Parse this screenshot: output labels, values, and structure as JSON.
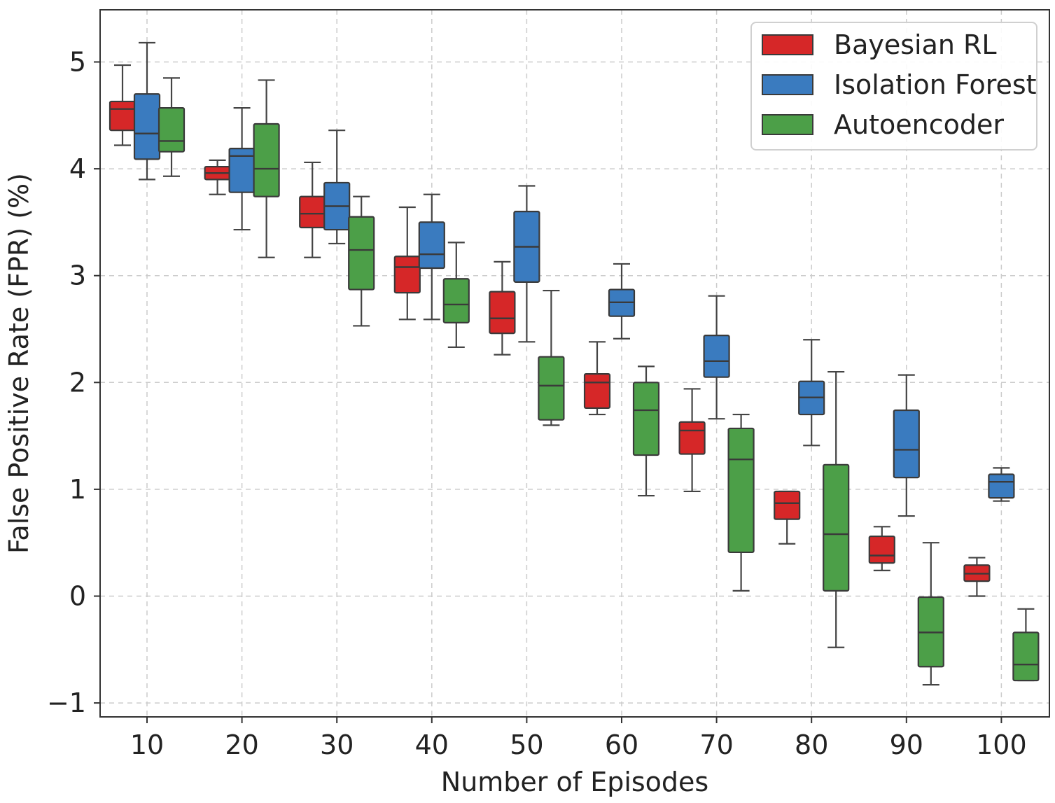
{
  "chart_data": {
    "type": "boxplot",
    "title": "",
    "xlabel": "Number of Episodes",
    "ylabel": "False Positive Rate (FPR) (%)",
    "categories": [
      "10",
      "20",
      "30",
      "40",
      "50",
      "60",
      "70",
      "80",
      "90",
      "100"
    ],
    "ylim": [
      -1.15,
      5.5
    ],
    "yticks": [
      -1,
      0,
      1,
      2,
      3,
      4,
      5
    ],
    "ytick_labels": [
      "−1",
      "0",
      "1",
      "2",
      "3",
      "4",
      "5"
    ],
    "grid": true,
    "legend_position": "top-right",
    "series": [
      {
        "name": "Bayesian RL",
        "color": "#d62728",
        "boxes": [
          {
            "whislo": 4.22,
            "q1": 4.36,
            "med": 4.56,
            "q3": 4.63,
            "whishi": 4.97
          },
          {
            "whislo": 3.76,
            "q1": 3.9,
            "med": 3.96,
            "q3": 4.02,
            "whishi": 4.08
          },
          {
            "whislo": 3.17,
            "q1": 3.45,
            "med": 3.58,
            "q3": 3.74,
            "whishi": 4.06
          },
          {
            "whislo": 2.59,
            "q1": 2.84,
            "med": 3.08,
            "q3": 3.18,
            "whishi": 3.64
          },
          {
            "whislo": 2.26,
            "q1": 2.46,
            "med": 2.6,
            "q3": 2.85,
            "whishi": 3.13
          },
          {
            "whislo": 1.7,
            "q1": 1.76,
            "med": 2.0,
            "q3": 2.08,
            "whishi": 2.38
          },
          {
            "whislo": 0.98,
            "q1": 1.33,
            "med": 1.55,
            "q3": 1.63,
            "whishi": 1.94
          },
          {
            "whislo": 0.49,
            "q1": 0.72,
            "med": 0.87,
            "q3": 0.98,
            "whishi": 0.98
          },
          {
            "whislo": 0.24,
            "q1": 0.31,
            "med": 0.38,
            "q3": 0.56,
            "whishi": 0.65
          },
          {
            "whislo": 0.0,
            "q1": 0.14,
            "med": 0.21,
            "q3": 0.29,
            "whishi": 0.36
          }
        ]
      },
      {
        "name": "Isolation Forest",
        "color": "#3a7bbf",
        "boxes": [
          {
            "whislo": 3.9,
            "q1": 4.09,
            "med": 4.33,
            "q3": 4.7,
            "whishi": 5.18
          },
          {
            "whislo": 3.43,
            "q1": 3.78,
            "med": 4.12,
            "q3": 4.19,
            "whishi": 4.57
          },
          {
            "whislo": 3.3,
            "q1": 3.43,
            "med": 3.65,
            "q3": 3.87,
            "whishi": 4.36
          },
          {
            "whislo": 2.59,
            "q1": 3.07,
            "med": 3.2,
            "q3": 3.5,
            "whishi": 3.76
          },
          {
            "whislo": 2.38,
            "q1": 2.94,
            "med": 3.27,
            "q3": 3.6,
            "whishi": 3.84
          },
          {
            "whislo": 2.41,
            "q1": 2.62,
            "med": 2.75,
            "q3": 2.87,
            "whishi": 3.11
          },
          {
            "whislo": 1.66,
            "q1": 2.05,
            "med": 2.2,
            "q3": 2.44,
            "whishi": 2.81
          },
          {
            "whislo": 1.41,
            "q1": 1.7,
            "med": 1.86,
            "q3": 2.01,
            "whishi": 2.4
          },
          {
            "whislo": 0.75,
            "q1": 1.11,
            "med": 1.37,
            "q3": 1.74,
            "whishi": 2.07
          },
          {
            "whislo": 0.89,
            "q1": 0.92,
            "med": 1.07,
            "q3": 1.14,
            "whishi": 1.2
          }
        ]
      },
      {
        "name": "Autoencoder",
        "color": "#4c9f48",
        "boxes": [
          {
            "whislo": 3.93,
            "q1": 4.16,
            "med": 4.26,
            "q3": 4.57,
            "whishi": 4.85
          },
          {
            "whislo": 3.17,
            "q1": 3.74,
            "med": 4.0,
            "q3": 4.42,
            "whishi": 4.83
          },
          {
            "whislo": 2.53,
            "q1": 2.87,
            "med": 3.24,
            "q3": 3.55,
            "whishi": 3.74
          },
          {
            "whislo": 2.33,
            "q1": 2.56,
            "med": 2.73,
            "q3": 2.97,
            "whishi": 3.31
          },
          {
            "whislo": 1.6,
            "q1": 1.65,
            "med": 1.97,
            "q3": 2.24,
            "whishi": 2.86
          },
          {
            "whislo": 0.94,
            "q1": 1.32,
            "med": 1.74,
            "q3": 2.0,
            "whishi": 2.15
          },
          {
            "whislo": 0.05,
            "q1": 0.41,
            "med": 1.28,
            "q3": 1.57,
            "whishi": 1.7
          },
          {
            "whislo": -0.48,
            "q1": 0.05,
            "med": 0.58,
            "q3": 1.23,
            "whishi": 2.1
          },
          {
            "whislo": -0.83,
            "q1": -0.66,
            "med": -0.34,
            "q3": -0.01,
            "whishi": 0.5
          },
          {
            "whislo": -0.79,
            "q1": -0.79,
            "med": -0.64,
            "q3": -0.34,
            "whishi": -0.12
          }
        ]
      }
    ]
  }
}
